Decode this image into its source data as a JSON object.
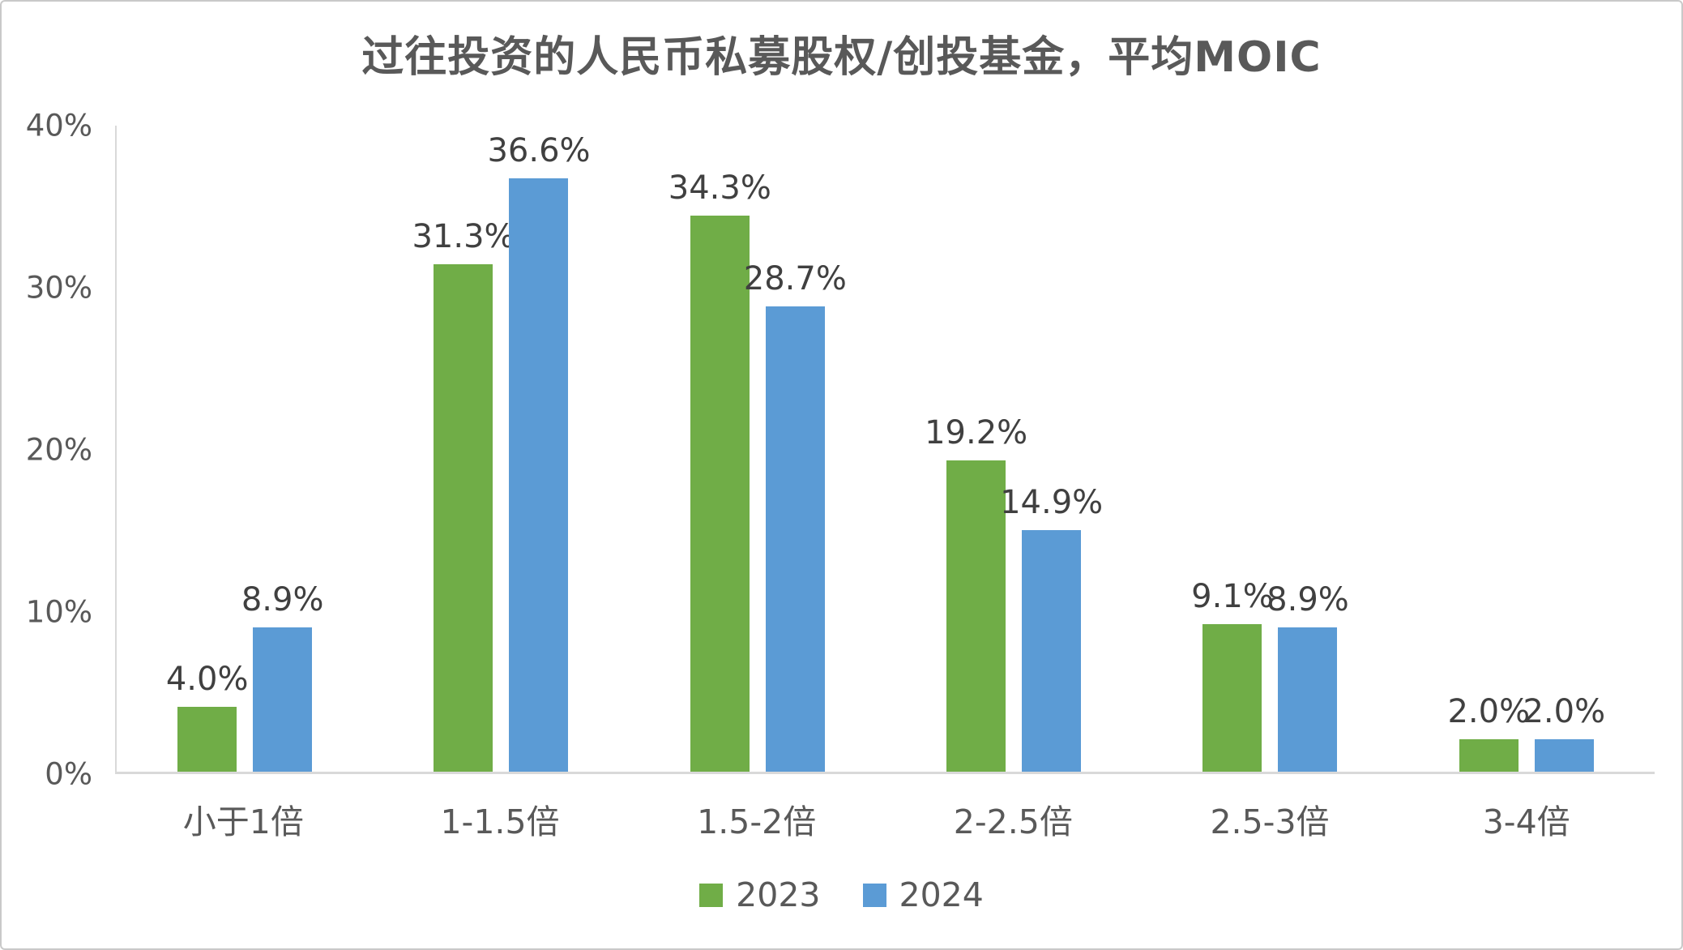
{
  "chart_data": {
    "type": "bar",
    "title": "过往投资的人民币私募股权/创投基金，平均MOIC",
    "categories": [
      "小于1倍",
      "1-1.5倍",
      "1.5-2倍",
      "2-2.5倍",
      "2.5-3倍",
      "3-4倍"
    ],
    "series": [
      {
        "name": "2023",
        "color": "#70AD47",
        "values": [
          4.0,
          31.3,
          34.3,
          19.2,
          9.1,
          2.0
        ],
        "data_labels": [
          "4.0%",
          "31.3%",
          "34.3%",
          "19.2%",
          "9.1%",
          "2.0%"
        ]
      },
      {
        "name": "2024",
        "color": "#5B9BD5",
        "values": [
          8.9,
          36.6,
          28.7,
          14.9,
          8.9,
          2.0
        ],
        "data_labels": [
          "8.9%",
          "36.6%",
          "28.7%",
          "14.9%",
          "8.9%",
          "2.0%"
        ]
      }
    ],
    "xlabel": "",
    "ylabel": "",
    "ylim": [
      0,
      40
    ],
    "yticks": [
      40,
      30,
      20,
      10,
      0
    ],
    "ytick_labels": [
      "40%",
      "30%",
      "20%",
      "10%",
      "0%"
    ],
    "grid": false,
    "legend_position": "bottom",
    "colors": {
      "title_text": "#595959",
      "axis_text": "#595959",
      "data_label_text": "#404040",
      "axis_line": "#d9d9d9",
      "background": "#ffffff"
    }
  }
}
